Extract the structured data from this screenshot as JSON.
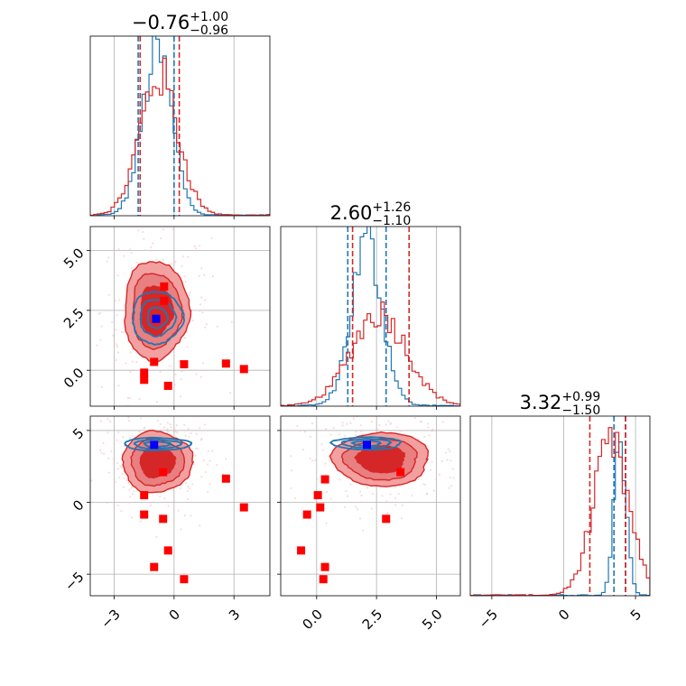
{
  "chart_data": {
    "type": "corner",
    "grid": true,
    "colors": {
      "blue": "#1f77b4",
      "red": "#d62728",
      "red_fill_inner": "#d62728",
      "red_fill_outer": "#f2a0a0",
      "truth_blue": "#0000ff",
      "truth_red": "#ff0000"
    },
    "params": [
      {
        "title": {
          "median": "−0.76",
          "plus": "+1.00",
          "minus": "−0.96"
        },
        "range": [
          -4.2,
          4.8
        ],
        "ticks": [
          -3,
          0,
          3
        ],
        "tick_labels": [
          "−3",
          "0",
          "3"
        ]
      },
      {
        "title": {
          "median": "2.60",
          "plus": "+1.26",
          "minus": "−1.10"
        },
        "range": [
          -1.5,
          6.0
        ],
        "ticks": [
          0.0,
          2.5,
          5.0
        ],
        "tick_labels": [
          "0.0",
          "2.5",
          "5.0"
        ]
      },
      {
        "title": {
          "median": "3.32",
          "plus": "+0.99",
          "minus": "−1.50"
        },
        "range": [
          -6.5,
          6.0
        ],
        "ticks": [
          -5,
          0,
          5
        ],
        "tick_labels": [
          "−5",
          "0",
          "5"
        ]
      }
    ],
    "diagonal": [
      {
        "blue_quantiles": [
          -1.8,
          0.0
        ],
        "red_quantiles": [
          -1.7,
          0.26
        ],
        "blue_hist": {
          "mean": -0.85,
          "sd": 0.75,
          "peak": 0.9
        },
        "red_hist": {
          "mean": -0.76,
          "sd": 0.95,
          "peak": 0.78
        }
      },
      {
        "blue_quantiles": [
          1.3,
          2.9
        ],
        "red_quantiles": [
          1.5,
          3.86
        ],
        "blue_hist": {
          "mean": 2.1,
          "sd": 0.65,
          "peak": 0.9
        },
        "red_hist": {
          "mean": 2.6,
          "sd": 1.15,
          "peak": 0.52
        }
      },
      {
        "blue_quantiles": [
          3.5,
          4.3
        ],
        "red_quantiles": [
          1.82,
          4.31
        ],
        "blue_hist": {
          "mean": 3.95,
          "sd": 0.42,
          "peak": 0.9
        },
        "red_hist": {
          "mean": 3.3,
          "sd": 1.25,
          "peak": 0.82
        }
      }
    ],
    "pairs": [
      {
        "x_param": 0,
        "y_param": 1,
        "red_center": [
          -0.9,
          2.5
        ],
        "red_spread": [
          1.3,
          1.65
        ],
        "blue_center": [
          -0.85,
          2.2
        ],
        "blue_spread": [
          1.1,
          0.95
        ],
        "truth_blue": [
          -0.9,
          2.15
        ],
        "truth_red": [
          [
            -0.5,
            3.5
          ],
          [
            -0.5,
            2.9
          ],
          [
            -1.0,
            0.35
          ],
          [
            0.5,
            0.25
          ],
          [
            2.6,
            0.28
          ],
          [
            3.5,
            0.05
          ],
          [
            -1.5,
            -0.1
          ],
          [
            -1.5,
            -0.4
          ],
          [
            -0.3,
            -0.65
          ]
        ]
      },
      {
        "x_param": 0,
        "y_param": 2,
        "red_center": [
          -0.85,
          2.8
        ],
        "red_spread": [
          1.4,
          1.7
        ],
        "blue_center": [
          -0.85,
          4.05
        ],
        "blue_spread": [
          1.45,
          0.38
        ],
        "truth_blue": [
          -1.0,
          4.0
        ],
        "truth_red": [
          [
            -0.55,
            2.1
          ],
          [
            2.6,
            1.65
          ],
          [
            -1.5,
            0.5
          ],
          [
            3.5,
            -0.35
          ],
          [
            -1.5,
            -0.85
          ],
          [
            -0.55,
            -1.15
          ],
          [
            -0.3,
            -3.35
          ],
          [
            -1.0,
            -4.5
          ],
          [
            0.5,
            -5.35
          ]
        ]
      },
      {
        "x_param": 1,
        "y_param": 2,
        "red_center": [
          2.7,
          3.0
        ],
        "red_spread": [
          1.6,
          1.5
        ],
        "blue_center": [
          2.1,
          4.1
        ],
        "blue_spread": [
          1.25,
          0.38
        ],
        "truth_blue": [
          2.1,
          4.0
        ],
        "truth_red": [
          [
            3.5,
            2.1
          ],
          [
            0.35,
            1.6
          ],
          [
            0.05,
            0.5
          ],
          [
            0.15,
            -0.35
          ],
          [
            -0.4,
            -0.85
          ],
          [
            2.9,
            -1.15
          ],
          [
            -0.65,
            -3.35
          ],
          [
            0.35,
            -4.5
          ],
          [
            0.28,
            -5.35
          ]
        ]
      }
    ]
  }
}
